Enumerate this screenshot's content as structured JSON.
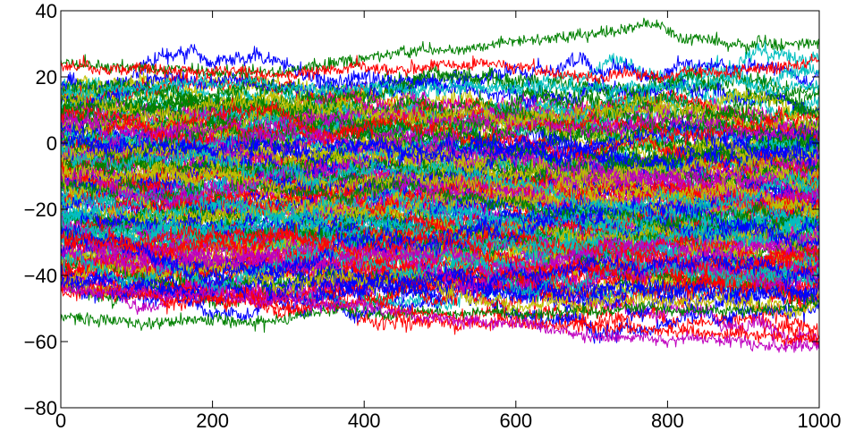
{
  "chart_data": {
    "type": "line",
    "title": "",
    "xlabel": "",
    "ylabel": "",
    "xlim": [
      0,
      1000
    ],
    "ylim": [
      -80,
      40
    ],
    "x_ticks": [
      0,
      200,
      400,
      600,
      800,
      1000
    ],
    "y_ticks": [
      40,
      20,
      0,
      -20,
      -40,
      -60,
      -80
    ],
    "x_tick_labels": [
      "0",
      "200",
      "400",
      "600",
      "800",
      "1000"
    ],
    "y_tick_labels": [
      "40",
      "20",
      "0",
      "−20",
      "−40",
      "−60",
      "−80"
    ],
    "grid": false,
    "legend": "none",
    "samples_per_series": 1000,
    "series_palette": [
      "#008000",
      "#ff0000",
      "#00bfbf",
      "#bf00bf",
      "#bfbf00",
      "#0000ff"
    ],
    "series_count_approx": 150,
    "band_center_at_x": [
      [
        0,
        -10
      ],
      [
        500,
        -14
      ],
      [
        1000,
        -16
      ]
    ],
    "band_upper_at_x": [
      [
        0,
        22
      ],
      [
        500,
        20
      ],
      [
        1000,
        18
      ]
    ],
    "band_lower_at_x": [
      [
        0,
        -47
      ],
      [
        500,
        -50
      ],
      [
        1000,
        -52
      ]
    ],
    "series": [
      {
        "color": "#008000",
        "values_at_x": [
          [
            0,
            24
          ],
          [
            100,
            25
          ],
          [
            200,
            23
          ],
          [
            300,
            24
          ],
          [
            400,
            27
          ],
          [
            500,
            29
          ],
          [
            600,
            32
          ],
          [
            700,
            32
          ],
          [
            760,
            34
          ],
          [
            900,
            30
          ],
          [
            1000,
            31
          ]
        ]
      },
      {
        "color": "#ff0000",
        "values_at_x": [
          [
            0,
            23
          ],
          [
            200,
            21
          ],
          [
            400,
            23
          ],
          [
            500,
            25
          ],
          [
            600,
            24
          ],
          [
            700,
            21
          ],
          [
            800,
            21
          ],
          [
            900,
            22
          ],
          [
            1000,
            24
          ]
        ]
      },
      {
        "color": "#00bfbf",
        "values_at_x": [
          [
            0,
            15
          ],
          [
            200,
            17
          ],
          [
            400,
            17
          ],
          [
            600,
            18
          ],
          [
            800,
            17
          ],
          [
            1000,
            16
          ]
        ]
      },
      {
        "color": "#008000",
        "values_at_x": [
          [
            0,
            -53
          ],
          [
            100,
            -55
          ],
          [
            200,
            -53
          ],
          [
            300,
            -52
          ],
          [
            400,
            -52
          ],
          [
            500,
            -51
          ],
          [
            600,
            -51
          ],
          [
            700,
            -50
          ],
          [
            800,
            -50
          ],
          [
            1000,
            -49
          ]
        ]
      },
      {
        "color": "#ff0000",
        "values_at_x": [
          [
            0,
            -45
          ],
          [
            200,
            -48
          ],
          [
            400,
            -50
          ],
          [
            500,
            -52
          ],
          [
            600,
            -55
          ],
          [
            700,
            -56
          ],
          [
            800,
            -56
          ],
          [
            900,
            -57
          ],
          [
            1000,
            -59
          ]
        ]
      },
      {
        "color": "#bf00bf",
        "values_at_x": [
          [
            0,
            -44
          ],
          [
            200,
            -46
          ],
          [
            400,
            -49
          ],
          [
            600,
            -53
          ],
          [
            700,
            -58
          ],
          [
            750,
            -59
          ],
          [
            800,
            -60
          ],
          [
            900,
            -61
          ],
          [
            1000,
            -62
          ]
        ]
      }
    ]
  }
}
